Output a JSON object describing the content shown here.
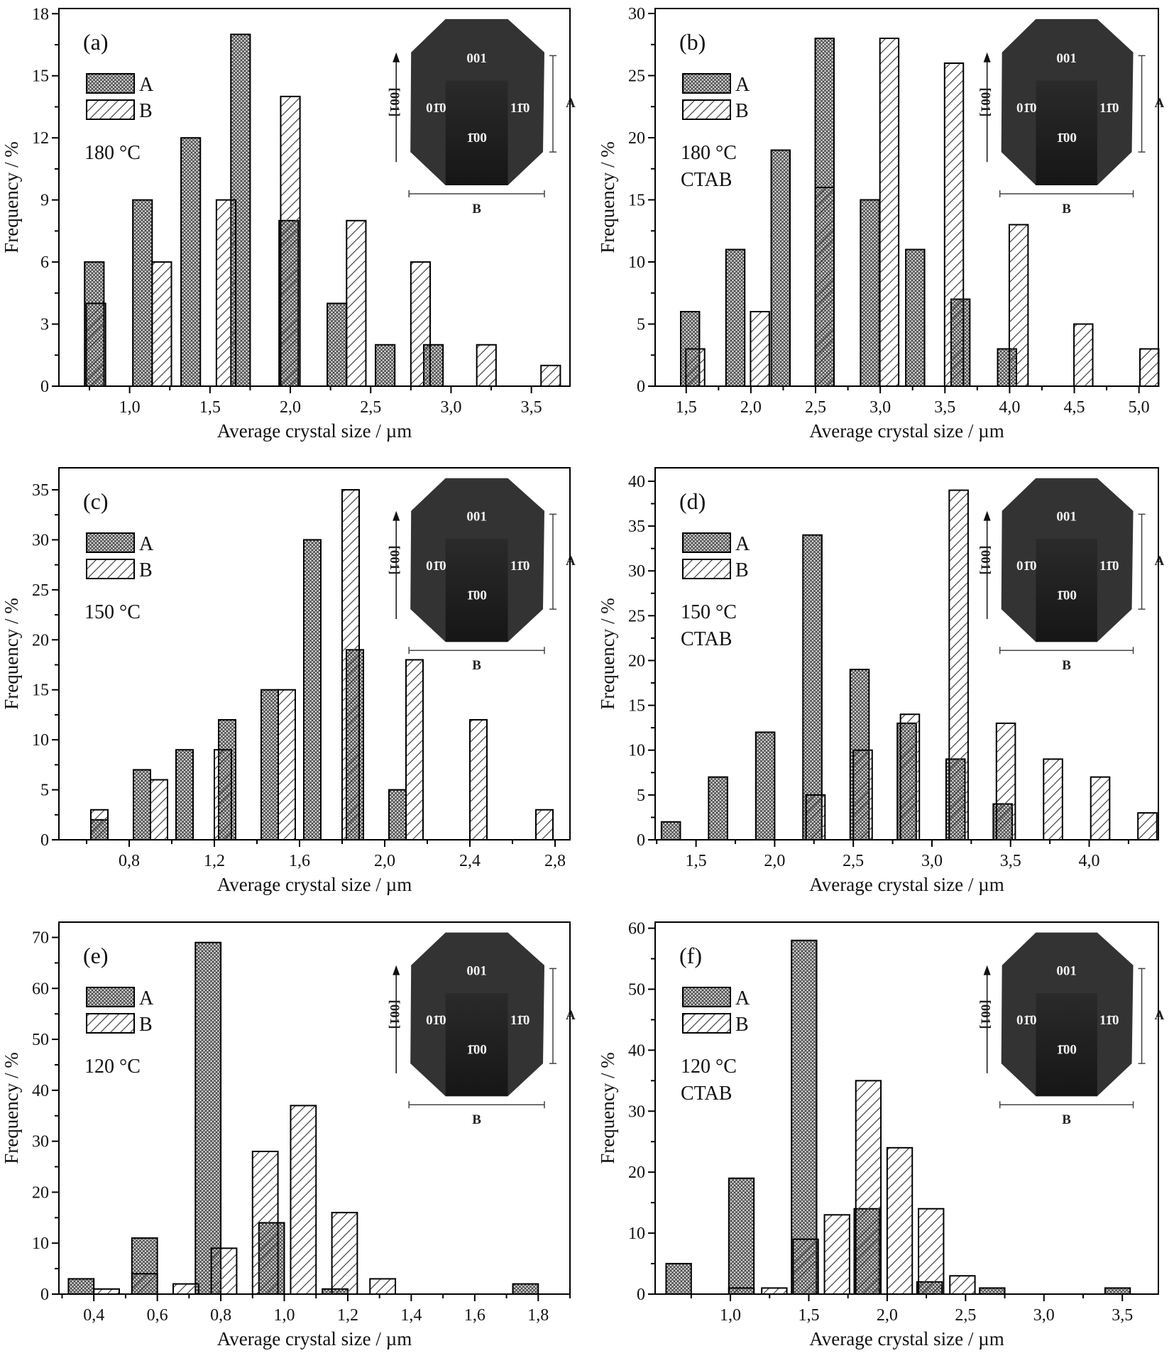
{
  "inset": {
    "face_top": "001",
    "face_left": "01̄0",
    "face_right": "11̄0",
    "face_front": "1̄00",
    "growth_axis": "[001]",
    "dim_a": "A",
    "dim_b": "B"
  },
  "colors": {
    "bar_outline": "#000000",
    "hatch": "#444444",
    "crystal": "#2e2e2e"
  },
  "chart_data": [
    {
      "type": "bar",
      "panel_label": "(a)",
      "condition": [
        "180 °C"
      ],
      "xlabel": "Average crystal size / µm",
      "ylabel": "Frequency / %",
      "xlim": [
        0.56,
        3.74
      ],
      "ylim": [
        0,
        18.25
      ],
      "xticks": [
        1.0,
        1.5,
        2.0,
        2.5,
        3.0,
        3.5
      ],
      "xtick_labels": [
        "1,0",
        "1,5",
        "2,0",
        "2,5",
        "3,0",
        "3,5"
      ],
      "yticks": [
        0,
        3,
        6,
        9,
        12,
        15,
        18
      ],
      "grid": false,
      "legend": "top-left",
      "series": [
        {
          "name": "A",
          "pattern": "crosshatch",
          "x": [
            0.78,
            1.08,
            1.38,
            1.69,
            1.99,
            2.29,
            2.59,
            2.89
          ],
          "values": [
            6,
            9,
            12,
            17,
            8,
            4,
            2,
            2
          ]
        },
        {
          "name": "B",
          "pattern": "diagonal",
          "x": [
            0.79,
            1.2,
            1.6,
            2.0,
            2.41,
            2.81,
            3.22,
            3.62
          ],
          "values": [
            4,
            6,
            9,
            14,
            8,
            6,
            2,
            1
          ]
        }
      ]
    },
    {
      "type": "bar",
      "panel_label": "(b)",
      "condition": [
        "180 °C",
        "CTAB"
      ],
      "xlabel": "Average crystal size / µm",
      "ylabel": "Frequency / %",
      "xlim": [
        1.26,
        5.15
      ],
      "ylim": [
        0,
        30.4
      ],
      "xticks": [
        1.5,
        2.0,
        2.5,
        3.0,
        3.5,
        4.0,
        4.5,
        5.0
      ],
      "xtick_labels": [
        "1,5",
        "2,0",
        "2,5",
        "3,0",
        "3,5",
        "4,0",
        "4,5",
        "5,0"
      ],
      "yticks": [
        0,
        5,
        10,
        15,
        20,
        25,
        30
      ],
      "grid": false,
      "legend": "top-left",
      "series": [
        {
          "name": "A",
          "pattern": "crosshatch",
          "x": [
            1.53,
            1.88,
            2.23,
            2.57,
            2.92,
            3.27,
            3.62,
            3.98
          ],
          "values": [
            6,
            11,
            19,
            28,
            15,
            11,
            7,
            3
          ]
        },
        {
          "name": "B",
          "pattern": "diagonal",
          "x": [
            1.57,
            2.07,
            2.57,
            3.07,
            3.57,
            4.07,
            4.57,
            5.08
          ],
          "values": [
            3,
            6,
            16,
            28,
            26,
            13,
            5,
            3
          ]
        }
      ]
    },
    {
      "type": "bar",
      "panel_label": "(c)",
      "condition": [
        "150 °C"
      ],
      "xlabel": "Average crystal size / µm",
      "ylabel": "Frequency / %",
      "xlim": [
        0.47,
        2.87
      ],
      "ylim": [
        0,
        37.2
      ],
      "xticks": [
        0.8,
        1.2,
        1.6,
        2.0,
        2.4,
        2.8
      ],
      "xtick_labels": [
        "0,8",
        "1,2",
        "1,6",
        "2,0",
        "2,4",
        "2,8"
      ],
      "yticks": [
        0,
        5,
        10,
        15,
        20,
        25,
        30,
        35
      ],
      "grid": false,
      "legend": "top-left",
      "series": [
        {
          "name": "A",
          "pattern": "crosshatch",
          "x": [
            0.66,
            0.86,
            1.06,
            1.26,
            1.46,
            1.66,
            1.86,
            2.06
          ],
          "values": [
            2,
            7,
            9,
            12,
            15,
            30,
            19,
            5
          ]
        },
        {
          "name": "B",
          "pattern": "diagonal",
          "x": [
            0.66,
            0.94,
            1.24,
            1.54,
            1.84,
            2.14,
            2.44,
            2.75
          ],
          "values": [
            3,
            6,
            9,
            15,
            35,
            18,
            12,
            3
          ]
        }
      ]
    },
    {
      "type": "bar",
      "panel_label": "(d)",
      "condition": [
        "150 °C",
        "CTAB"
      ],
      "xlabel": "Average crystal size / µm",
      "ylabel": "Frequency / %",
      "xlim": [
        1.24,
        4.44
      ],
      "ylim": [
        0,
        41.5
      ],
      "xticks": [
        1.5,
        2.0,
        2.5,
        3.0,
        3.5,
        4.0
      ],
      "xtick_labels": [
        "1,5",
        "2,0",
        "2,5",
        "3,0",
        "3,5",
        "4,0"
      ],
      "yticks": [
        0,
        5,
        10,
        15,
        20,
        25,
        30,
        35,
        40
      ],
      "grid": false,
      "legend": "top-left",
      "series": [
        {
          "name": "A",
          "pattern": "crosshatch",
          "x": [
            1.34,
            1.64,
            1.94,
            2.24,
            2.54,
            2.84,
            3.15,
            3.45
          ],
          "values": [
            2,
            7,
            12,
            34,
            19,
            13,
            9,
            4
          ]
        },
        {
          "name": "B",
          "pattern": "diagonal",
          "x": [
            2.26,
            2.56,
            2.86,
            3.17,
            3.47,
            3.77,
            4.07,
            4.37
          ],
          "values": [
            5,
            10,
            14,
            39,
            13,
            9,
            7,
            3
          ]
        }
      ]
    },
    {
      "type": "bar",
      "panel_label": "(e)",
      "condition": [
        "120 °C"
      ],
      "xlabel": "Average crystal size / µm",
      "ylabel": "Frequency / %",
      "xlim": [
        0.29,
        1.9
      ],
      "ylim": [
        0,
        73
      ],
      "xticks": [
        0.4,
        0.6,
        0.8,
        1.0,
        1.2,
        1.4,
        1.6,
        1.8
      ],
      "xtick_labels": [
        "0,4",
        "0,6",
        "0,8",
        "1,0",
        "1,2",
        "1,4",
        "1,6",
        "1,8"
      ],
      "yticks": [
        0,
        10,
        20,
        30,
        40,
        50,
        60,
        70
      ],
      "grid": false,
      "legend": "top-left",
      "series": [
        {
          "name": "A",
          "pattern": "crosshatch",
          "x": [
            0.36,
            0.56,
            0.76,
            0.96,
            1.16,
            1.76
          ],
          "values": [
            3,
            11,
            69,
            14,
            1,
            2
          ]
        },
        {
          "name": "B",
          "pattern": "diagonal",
          "x": [
            0.44,
            0.56,
            0.69,
            0.81,
            0.94,
            1.06,
            1.19,
            1.31
          ],
          "values": [
            1,
            4,
            2,
            9,
            28,
            37,
            16,
            3
          ]
        }
      ]
    },
    {
      "type": "bar",
      "panel_label": "(f)",
      "condition": [
        "120 °C",
        "CTAB"
      ],
      "xlabel": "Average crystal size / µm",
      "ylabel": "Frequency / %",
      "xlim": [
        0.52,
        3.73
      ],
      "ylim": [
        0,
        61
      ],
      "xticks": [
        1.0,
        1.5,
        2.0,
        2.5,
        3.0,
        3.5
      ],
      "xtick_labels": [
        "1,0",
        "1,5",
        "2,0",
        "2,5",
        "3,0",
        "3,5"
      ],
      "yticks": [
        0,
        10,
        20,
        30,
        40,
        50,
        60
      ],
      "grid": false,
      "legend": "top-left",
      "series": [
        {
          "name": "A",
          "pattern": "crosshatch",
          "x": [
            0.67,
            1.07,
            1.47,
            1.87,
            2.27,
            2.67,
            3.47
          ],
          "values": [
            5,
            19,
            58,
            14,
            2,
            1,
            1
          ]
        },
        {
          "name": "B",
          "pattern": "diagonal",
          "x": [
            1.07,
            1.28,
            1.48,
            1.68,
            1.88,
            2.08,
            2.28,
            2.48
          ],
          "values": [
            1,
            1,
            9,
            13,
            35,
            24,
            14,
            3
          ]
        }
      ]
    }
  ]
}
